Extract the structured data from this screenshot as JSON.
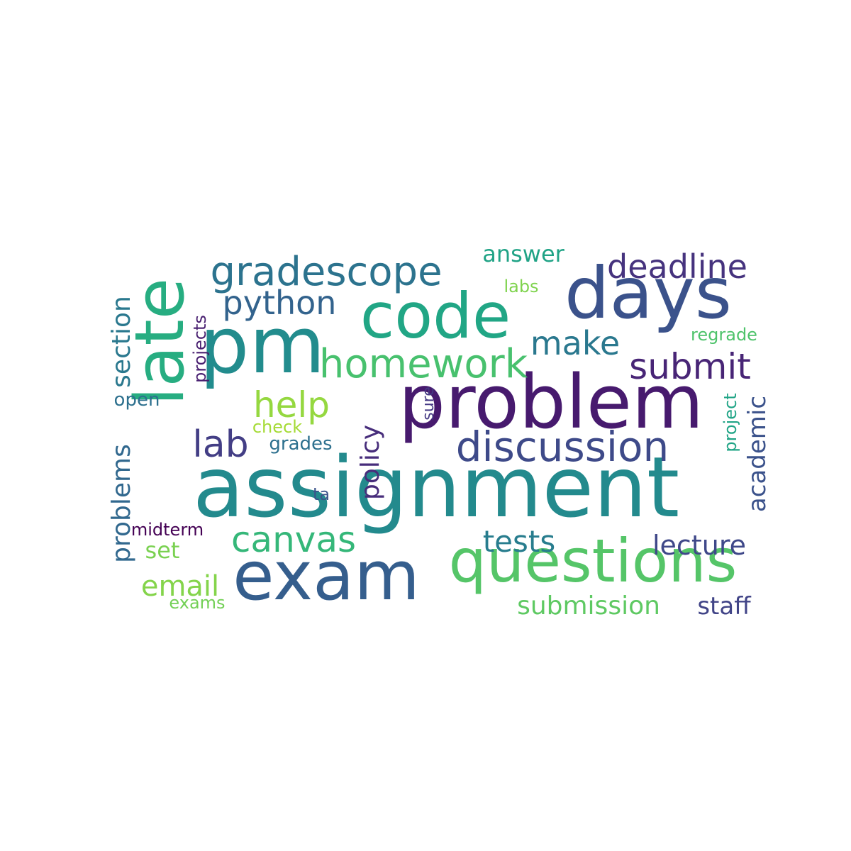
{
  "words": [
    {
      "text": "assignment",
      "color": "#238a8d"
    },
    {
      "text": "problem",
      "color": "#471a6e"
    },
    {
      "text": "exam",
      "color": "#355e8d"
    },
    {
      "text": "questions",
      "color": "#55c568"
    },
    {
      "text": "days",
      "color": "#3b528b"
    },
    {
      "text": "code",
      "color": "#21a685"
    },
    {
      "text": "pm",
      "color": "#228c8d"
    },
    {
      "text": "late",
      "color": "#27ad81"
    },
    {
      "text": "gradescope",
      "color": "#2c738e"
    },
    {
      "text": "homework",
      "color": "#48c16e"
    },
    {
      "text": "discussion",
      "color": "#3e4a89"
    },
    {
      "text": "deadline",
      "color": "#46337e"
    },
    {
      "text": "python",
      "color": "#33638d"
    },
    {
      "text": "submit",
      "color": "#482576"
    },
    {
      "text": "canvas",
      "color": "#35b779"
    },
    {
      "text": "lab",
      "color": "#433e85"
    },
    {
      "text": "help",
      "color": "#95d840"
    },
    {
      "text": "make",
      "color": "#2a788e"
    },
    {
      "text": "lecture",
      "color": "#3f4889"
    },
    {
      "text": "tests",
      "color": "#287d8e"
    },
    {
      "text": "email",
      "color": "#84d44b"
    },
    {
      "text": "submission",
      "color": "#5ec962"
    },
    {
      "text": "staff",
      "color": "#414487"
    },
    {
      "text": "answer",
      "color": "#20a386"
    },
    {
      "text": "section",
      "color": "#2a788e"
    },
    {
      "text": "problems",
      "color": "#31688e"
    },
    {
      "text": "policy",
      "color": "#472d7b"
    },
    {
      "text": "academic",
      "color": "#3b528b"
    },
    {
      "text": "projects",
      "color": "#481f70"
    },
    {
      "text": "set",
      "color": "#7ad151"
    },
    {
      "text": "open",
      "color": "#2d708e"
    },
    {
      "text": "grades",
      "color": "#2d708e"
    },
    {
      "text": "check",
      "color": "#a5db36"
    },
    {
      "text": "midterm",
      "color": "#440154"
    },
    {
      "text": "project",
      "color": "#20a486"
    },
    {
      "text": "regrade",
      "color": "#4ec36b"
    },
    {
      "text": "labs",
      "color": "#7fd34e"
    },
    {
      "text": "sure",
      "color": "#443983"
    },
    {
      "text": "ta",
      "color": "#3b528b"
    },
    {
      "text": "exams",
      "color": "#73d056"
    }
  ]
}
